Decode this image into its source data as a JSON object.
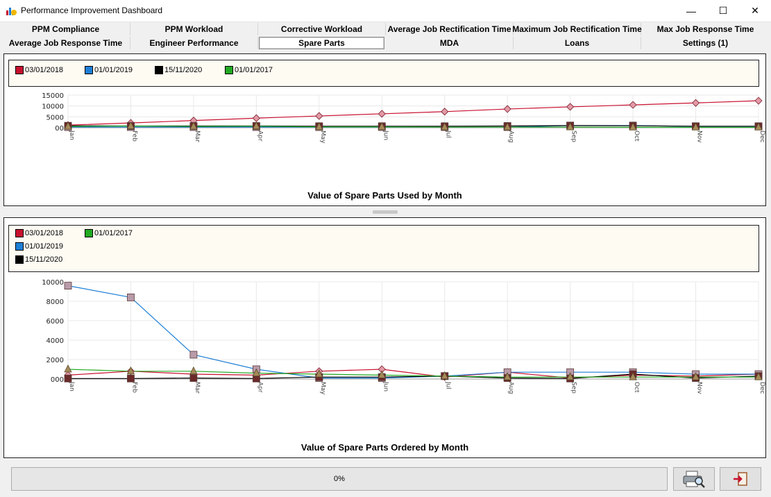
{
  "window": {
    "title": "Performance Improvement Dashboard",
    "minimize": "—",
    "maximize": "☐",
    "close": "✕"
  },
  "tabs": {
    "row1": [
      "PPM Compliance",
      "PPM Workload",
      "Corrective Workload",
      "Average Job Rectification Time",
      "Maximum Job Rectification Time",
      "Max Job Response Time"
    ],
    "row2": [
      "Average Job Response Time",
      "Engineer Performance",
      "Spare Parts",
      "MDA",
      "Loans",
      "Settings (1)"
    ],
    "active": "Spare Parts"
  },
  "status": {
    "progress_label": "0%",
    "progress_value": 0
  },
  "buttons": {
    "print_icon": "printer-preview-icon",
    "exit_icon": "exit-door-icon"
  },
  "colors": {
    "series_2018": "#c8102e",
    "series_2019": "#1e7fd6",
    "series_2020": "#000000",
    "series_2017": "#22aa22"
  },
  "chart_data": [
    {
      "type": "line",
      "title": "Value of Spare Parts Used by Month",
      "categories": [
        "Jan",
        "Feb",
        "Mar",
        "Apr",
        "May",
        "Jun",
        "Jul",
        "Aug",
        "Sep",
        "Oct",
        "Nov",
        "Dec"
      ],
      "y_ticks": [
        "00",
        "5000",
        "10000",
        "15000"
      ],
      "ylim": [
        0,
        15000
      ],
      "grid": true,
      "legend": {
        "position": "top",
        "items": [
          "03/01/2018",
          "01/01/2019",
          "15/11/2020",
          "01/01/2017"
        ]
      },
      "series": [
        {
          "name": "03/01/2018",
          "color": "#c8102e",
          "marker": "diamond",
          "values": [
            1200,
            2200,
            3300,
            4400,
            5400,
            6400,
            7400,
            8600,
            9600,
            10500,
            11400,
            12400
          ]
        },
        {
          "name": "01/01/2019",
          "color": "#1e7fd6",
          "marker": "square",
          "values": [
            300,
            300,
            300,
            300,
            300,
            300,
            300,
            300,
            1000,
            1000,
            600,
            600
          ]
        },
        {
          "name": "15/11/2020",
          "color": "#000000",
          "marker": "square",
          "values": [
            900,
            800,
            800,
            800,
            700,
            700,
            700,
            800,
            1000,
            900,
            700,
            700
          ]
        },
        {
          "name": "01/01/2017",
          "color": "#22aa22",
          "marker": "triangle",
          "values": [
            600,
            800,
            600,
            700,
            400,
            400,
            300,
            300,
            300,
            200,
            200,
            200
          ]
        }
      ]
    },
    {
      "type": "line",
      "title": "Value of Spare Parts Ordered by Month",
      "categories": [
        "Jan",
        "Feb",
        "Mar",
        "Apr",
        "May",
        "Jun",
        "Jul",
        "Aug",
        "Sep",
        "Oct",
        "Nov",
        "Dec"
      ],
      "y_ticks": [
        "000",
        "2000",
        "4000",
        "6000",
        "8000",
        "10000"
      ],
      "ylim": [
        0,
        10000
      ],
      "grid": true,
      "legend": {
        "position": "top",
        "items": [
          "03/01/2018",
          "01/01/2017",
          "01/01/2019",
          "15/11/2020"
        ]
      },
      "series": [
        {
          "name": "03/01/2018",
          "color": "#c8102e",
          "marker": "diamond",
          "values": [
            400,
            800,
            500,
            400,
            800,
            1000,
            200,
            700,
            100,
            400,
            300,
            500
          ]
        },
        {
          "name": "01/01/2019",
          "color": "#1e7fd6",
          "marker": "square",
          "values": [
            9600,
            8400,
            2500,
            1000,
            100,
            100,
            300,
            700,
            700,
            700,
            500,
            500
          ]
        },
        {
          "name": "15/11/2020",
          "color": "#000000",
          "marker": "square",
          "values": [
            50,
            50,
            100,
            50,
            200,
            200,
            300,
            100,
            50,
            500,
            100,
            300
          ]
        },
        {
          "name": "01/01/2017",
          "color": "#22aa22",
          "marker": "triangle",
          "values": [
            1000,
            800,
            800,
            600,
            500,
            400,
            300,
            200,
            200,
            200,
            200,
            200
          ]
        }
      ]
    }
  ]
}
